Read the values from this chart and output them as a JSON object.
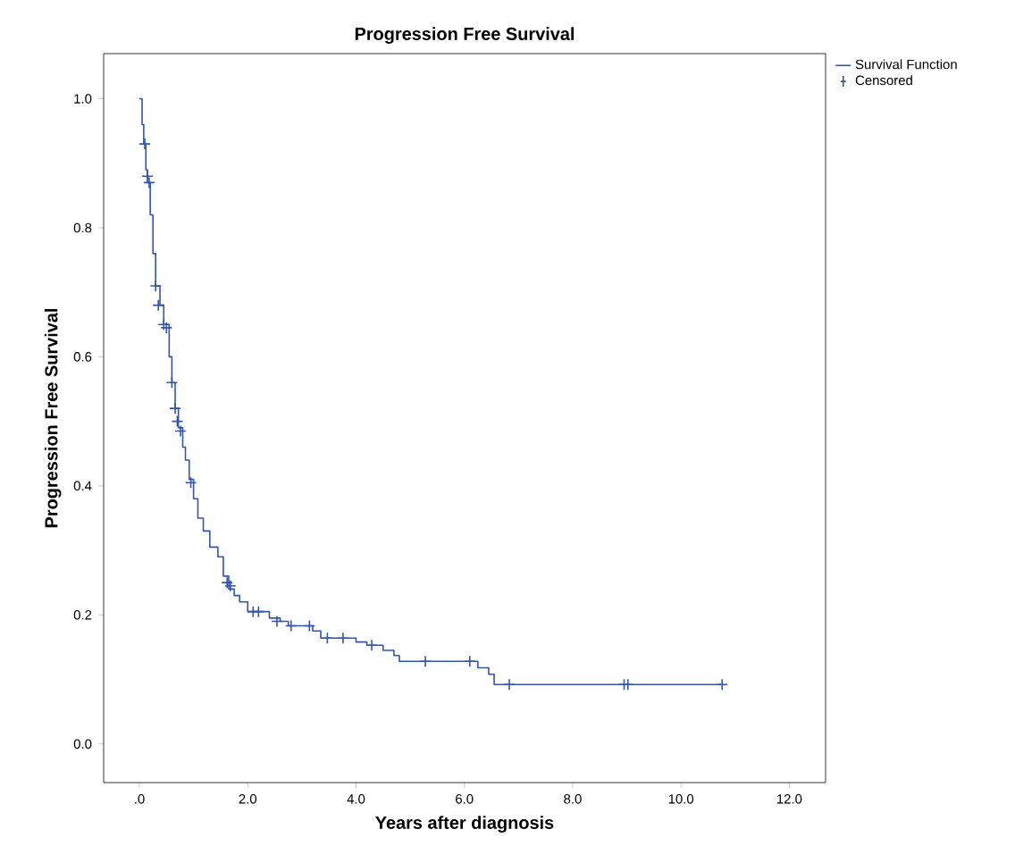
{
  "chart_data": {
    "type": "step",
    "title": "Progression Free Survival",
    "xlabel": "Years after diagnosis",
    "ylabel": "Progression Free Survival",
    "xlim": [
      -0.66,
      12.67
    ],
    "ylim": [
      -0.06,
      1.07
    ],
    "xticks": [
      {
        "value": 0,
        "label": ".0"
      },
      {
        "value": 2,
        "label": "2.0"
      },
      {
        "value": 4,
        "label": "4.0"
      },
      {
        "value": 6,
        "label": "6.0"
      },
      {
        "value": 8,
        "label": "8.0"
      },
      {
        "value": 10,
        "label": "10.0"
      },
      {
        "value": 12,
        "label": "12.0"
      }
    ],
    "yticks": [
      {
        "value": 0,
        "label": "0.0"
      },
      {
        "value": 0.2,
        "label": "0.2"
      },
      {
        "value": 0.4,
        "label": "0.4"
      },
      {
        "value": 0.6,
        "label": "0.6"
      },
      {
        "value": 0.8,
        "label": "0.8"
      },
      {
        "value": 1,
        "label": "1.0"
      }
    ],
    "legend": "top right",
    "grid": false,
    "series": [
      {
        "name": "Survival Function",
        "color": "#3355aa",
        "marker": "none",
        "x": [
          0,
          0.05,
          0.08,
          0.12,
          0.15,
          0.2,
          0.25,
          0.3,
          0.38,
          0.45,
          0.55,
          0.6,
          0.66,
          0.72,
          0.8,
          0.85,
          0.92,
          1.0,
          1.08,
          1.18,
          1.3,
          1.45,
          1.55,
          1.65,
          1.75,
          1.85,
          2.0,
          2.4,
          2.6,
          2.75,
          3.2,
          3.35,
          4.0,
          4.2,
          4.5,
          4.7,
          4.8,
          6.25,
          6.45,
          6.55,
          10.76
        ],
        "values": [
          1.0,
          0.96,
          0.93,
          0.89,
          0.87,
          0.82,
          0.76,
          0.71,
          0.68,
          0.65,
          0.6,
          0.56,
          0.52,
          0.49,
          0.46,
          0.44,
          0.41,
          0.38,
          0.35,
          0.33,
          0.305,
          0.29,
          0.26,
          0.24,
          0.23,
          0.22,
          0.205,
          0.195,
          0.19,
          0.183,
          0.175,
          0.164,
          0.158,
          0.153,
          0.145,
          0.137,
          0.128,
          0.118,
          0.108,
          0.092,
          0.092
        ]
      },
      {
        "name": "Censored",
        "type": "scatter",
        "color": "#3355aa",
        "marker": "cross",
        "x": [
          0.1,
          0.15,
          0.18,
          0.3,
          0.35,
          0.45,
          0.5,
          0.6,
          0.66,
          0.7,
          0.76,
          0.95,
          1.62,
          1.68,
          2.1,
          2.2,
          2.54,
          2.8,
          3.14,
          3.47,
          3.76,
          4.29,
          5.28,
          6.1,
          6.83,
          8.95,
          9.02,
          10.76
        ],
        "values": [
          0.93,
          0.88,
          0.87,
          0.71,
          0.68,
          0.65,
          0.645,
          0.56,
          0.52,
          0.5,
          0.485,
          0.405,
          0.25,
          0.245,
          0.205,
          0.205,
          0.19,
          0.183,
          0.183,
          0.164,
          0.164,
          0.153,
          0.128,
          0.128,
          0.092,
          0.092,
          0.092,
          0.092
        ]
      }
    ]
  }
}
